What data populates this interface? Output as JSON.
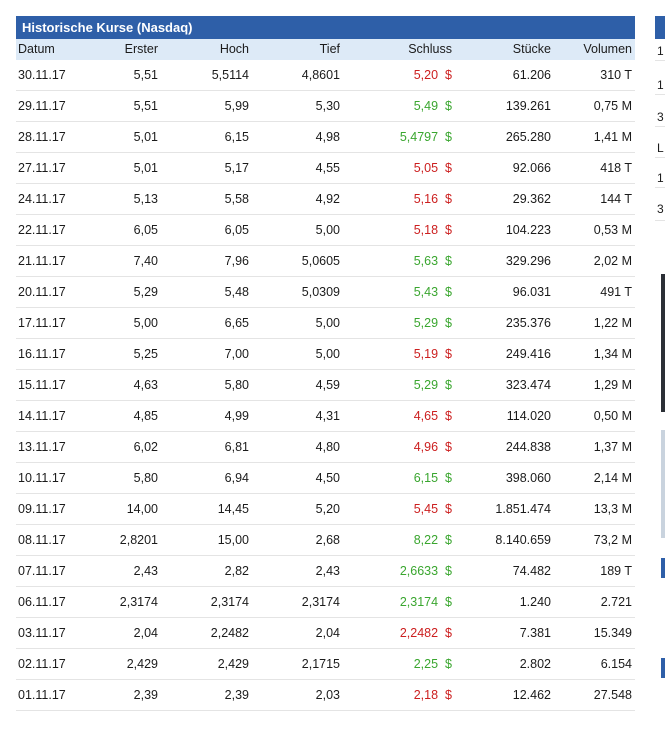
{
  "table": {
    "title": "Historische Kurse (Nasdaq)",
    "columns": [
      "Datum",
      "Erster",
      "Hoch",
      "Tief",
      "Schluss",
      "Stücke",
      "Volumen"
    ],
    "currency_symbol": "$",
    "rows": [
      {
        "datum": "30.11.17",
        "erster": "5,51",
        "hoch": "5,5114",
        "tief": "4,8601",
        "schluss": "5,20",
        "trend": "down",
        "stuecke": "61.206",
        "volumen": "310 T"
      },
      {
        "datum": "29.11.17",
        "erster": "5,51",
        "hoch": "5,99",
        "tief": "5,30",
        "schluss": "5,49",
        "trend": "up",
        "stuecke": "139.261",
        "volumen": "0,75 M"
      },
      {
        "datum": "28.11.17",
        "erster": "5,01",
        "hoch": "6,15",
        "tief": "4,98",
        "schluss": "5,4797",
        "trend": "up",
        "stuecke": "265.280",
        "volumen": "1,41 M"
      },
      {
        "datum": "27.11.17",
        "erster": "5,01",
        "hoch": "5,17",
        "tief": "4,55",
        "schluss": "5,05",
        "trend": "down",
        "stuecke": "92.066",
        "volumen": "418 T"
      },
      {
        "datum": "24.11.17",
        "erster": "5,13",
        "hoch": "5,58",
        "tief": "4,92",
        "schluss": "5,16",
        "trend": "down",
        "stuecke": "29.362",
        "volumen": "144 T"
      },
      {
        "datum": "22.11.17",
        "erster": "6,05",
        "hoch": "6,05",
        "tief": "5,00",
        "schluss": "5,18",
        "trend": "down",
        "stuecke": "104.223",
        "volumen": "0,53 M"
      },
      {
        "datum": "21.11.17",
        "erster": "7,40",
        "hoch": "7,96",
        "tief": "5,0605",
        "schluss": "5,63",
        "trend": "up",
        "stuecke": "329.296",
        "volumen": "2,02 M"
      },
      {
        "datum": "20.11.17",
        "erster": "5,29",
        "hoch": "5,48",
        "tief": "5,0309",
        "schluss": "5,43",
        "trend": "up",
        "stuecke": "96.031",
        "volumen": "491 T"
      },
      {
        "datum": "17.11.17",
        "erster": "5,00",
        "hoch": "6,65",
        "tief": "5,00",
        "schluss": "5,29",
        "trend": "up",
        "stuecke": "235.376",
        "volumen": "1,22 M"
      },
      {
        "datum": "16.11.17",
        "erster": "5,25",
        "hoch": "7,00",
        "tief": "5,00",
        "schluss": "5,19",
        "trend": "down",
        "stuecke": "249.416",
        "volumen": "1,34 M"
      },
      {
        "datum": "15.11.17",
        "erster": "4,63",
        "hoch": "5,80",
        "tief": "4,59",
        "schluss": "5,29",
        "trend": "up",
        "stuecke": "323.474",
        "volumen": "1,29 M"
      },
      {
        "datum": "14.11.17",
        "erster": "4,85",
        "hoch": "4,99",
        "tief": "4,31",
        "schluss": "4,65",
        "trend": "down",
        "stuecke": "114.020",
        "volumen": "0,50 M"
      },
      {
        "datum": "13.11.17",
        "erster": "6,02",
        "hoch": "6,81",
        "tief": "4,80",
        "schluss": "4,96",
        "trend": "down",
        "stuecke": "244.838",
        "volumen": "1,37 M"
      },
      {
        "datum": "10.11.17",
        "erster": "5,80",
        "hoch": "6,94",
        "tief": "4,50",
        "schluss": "6,15",
        "trend": "up",
        "stuecke": "398.060",
        "volumen": "2,14 M"
      },
      {
        "datum": "09.11.17",
        "erster": "14,00",
        "hoch": "14,45",
        "tief": "5,20",
        "schluss": "5,45",
        "trend": "down",
        "stuecke": "1.851.474",
        "volumen": "13,3 M"
      },
      {
        "datum": "08.11.17",
        "erster": "2,8201",
        "hoch": "15,00",
        "tief": "2,68",
        "schluss": "8,22",
        "trend": "up",
        "stuecke": "8.140.659",
        "volumen": "73,2 M"
      },
      {
        "datum": "07.11.17",
        "erster": "2,43",
        "hoch": "2,82",
        "tief": "2,43",
        "schluss": "2,6633",
        "trend": "up",
        "stuecke": "74.482",
        "volumen": "189 T"
      },
      {
        "datum": "06.11.17",
        "erster": "2,3174",
        "hoch": "2,3174",
        "tief": "2,3174",
        "schluss": "2,3174",
        "trend": "up",
        "stuecke": "1.240",
        "volumen": "2.721"
      },
      {
        "datum": "03.11.17",
        "erster": "2,04",
        "hoch": "2,2482",
        "tief": "2,04",
        "schluss": "2,2482",
        "trend": "down",
        "stuecke": "7.381",
        "volumen": "15.349"
      },
      {
        "datum": "02.11.17",
        "erster": "2,429",
        "hoch": "2,429",
        "tief": "2,1715",
        "schluss": "2,25",
        "trend": "up",
        "stuecke": "2.802",
        "volumen": "6.154"
      },
      {
        "datum": "01.11.17",
        "erster": "2,39",
        "hoch": "2,39",
        "tief": "2,03",
        "schluss": "2,18",
        "trend": "down",
        "stuecke": "12.462",
        "volumen": "27.548"
      }
    ]
  },
  "side_panel": {
    "clipped_row_texts": [
      "1",
      "1",
      "3",
      "L",
      "1",
      "3"
    ]
  },
  "colors": {
    "header_bg": "#2e5fa8",
    "column_header_bg": "#ddeaf7",
    "up": "#3aa62f",
    "down": "#cc1f1f"
  }
}
